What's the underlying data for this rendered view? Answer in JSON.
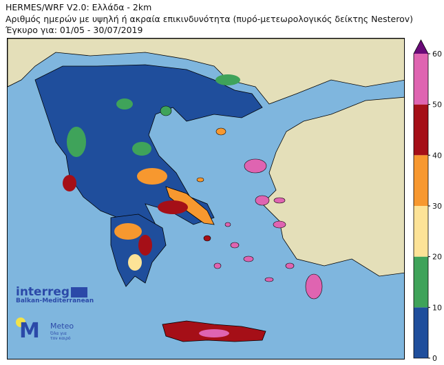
{
  "header": {
    "line1": "HERMES/WRF V2.0: Ελλάδα - 2km",
    "line2": "Αριθμός ημερών με υψηλή ή ακραία επικινδυνότητα (πυρό-μετεωρολογικός δείκτης Nesterov)",
    "line3": "Έγκυρο για: 01/05 - 30/07/2019"
  },
  "colorbar": {
    "ticks": [
      "0",
      "10",
      "20",
      "30",
      "40",
      "50",
      "60"
    ],
    "bins": [
      {
        "from": 0,
        "to": 10,
        "color": "#1f4e9c"
      },
      {
        "from": 10,
        "to": 20,
        "color": "#3fa35a"
      },
      {
        "from": 20,
        "to": 30,
        "color": "#fde397"
      },
      {
        "from": 30,
        "to": 40,
        "color": "#f7982f"
      },
      {
        "from": 40,
        "to": 50,
        "color": "#a50f17"
      },
      {
        "from": 50,
        "to": 60,
        "color": "#df64b1"
      }
    ],
    "over_color": "#6a0a78",
    "extend": "max"
  },
  "map": {
    "sea_color": "#7fb6de",
    "land_color": "#e4dfb9"
  },
  "logos": {
    "interreg": "interreg",
    "interreg_sub": "Balkan-Mediterranean",
    "meteo": "Meteo",
    "meteo_sub1": "Όλα για",
    "meteo_sub2": "τον καιρό"
  }
}
